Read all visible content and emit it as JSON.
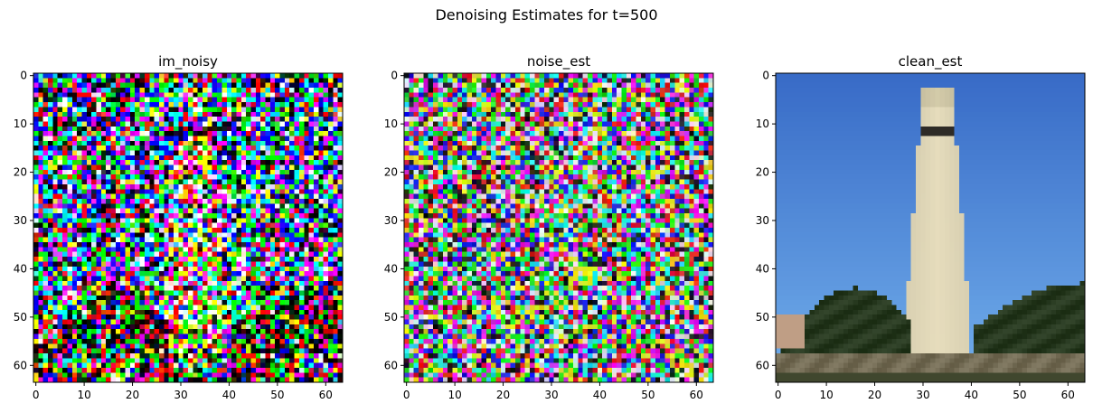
{
  "figure": {
    "suptitle": "Denoising Estimates for t=500"
  },
  "chart_data": [
    {
      "type": "heatmap",
      "title": "im_noisy",
      "xlabel": "",
      "ylabel": "",
      "xlim": [
        -0.5,
        63.5
      ],
      "ylim": [
        63.5,
        -0.5
      ],
      "xticks": [
        0,
        10,
        20,
        30,
        40,
        50,
        60
      ],
      "yticks": [
        0,
        10,
        20,
        30,
        40,
        50,
        60
      ],
      "grid": false,
      "content": "noisy RGB image 64x64 (diffusion step t=500)"
    },
    {
      "type": "heatmap",
      "title": "noise_est",
      "xlabel": "",
      "ylabel": "",
      "xlim": [
        -0.5,
        63.5
      ],
      "ylim": [
        63.5,
        -0.5
      ],
      "xticks": [
        0,
        10,
        20,
        30,
        40,
        50,
        60
      ],
      "yticks": [
        0,
        10,
        20,
        30,
        40,
        50,
        60
      ],
      "grid": false,
      "content": "estimated noise RGB 64x64"
    },
    {
      "type": "heatmap",
      "title": "clean_est",
      "xlabel": "",
      "ylabel": "",
      "xlim": [
        -0.5,
        63.5
      ],
      "ylim": [
        63.5,
        -0.5
      ],
      "xticks": [
        0,
        10,
        20,
        30,
        40,
        50,
        60
      ],
      "yticks": [
        0,
        10,
        20,
        30,
        40,
        50,
        60
      ],
      "grid": false,
      "content": "estimated clean image 64x64: white tower against blue sky with trees"
    }
  ]
}
